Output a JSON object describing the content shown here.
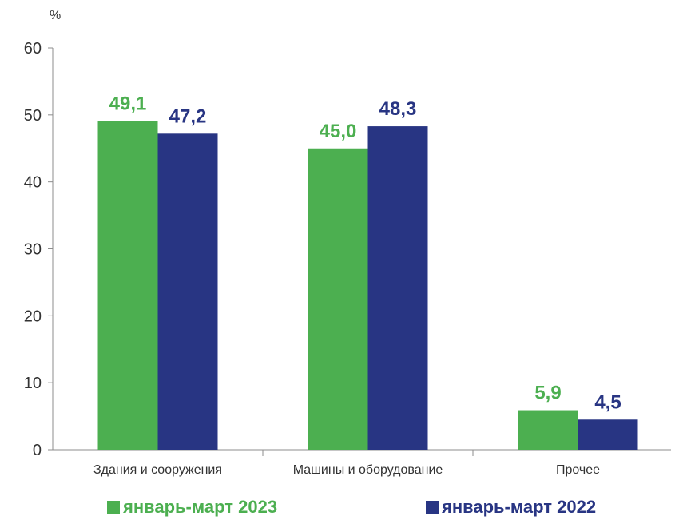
{
  "chart_data": {
    "type": "bar",
    "unit_label": "%",
    "categories": [
      "Здания и сооружения",
      "Машины и оборудование",
      "Прочее"
    ],
    "series": [
      {
        "name": "январь-март 2023",
        "color": "#4caf50",
        "values": [
          49.1,
          45.0,
          5.9
        ],
        "labels": [
          "49,1",
          "45,0",
          "5,9"
        ]
      },
      {
        "name": "январь-март 2022",
        "color": "#283583",
        "values": [
          47.2,
          48.3,
          4.5
        ],
        "labels": [
          "47,2",
          "48,3",
          "4,5"
        ]
      }
    ],
    "ylim": [
      0,
      60
    ],
    "yticks": [
      0,
      10,
      20,
      30,
      40,
      50,
      60
    ],
    "grid": false,
    "legend_position": "bottom"
  }
}
